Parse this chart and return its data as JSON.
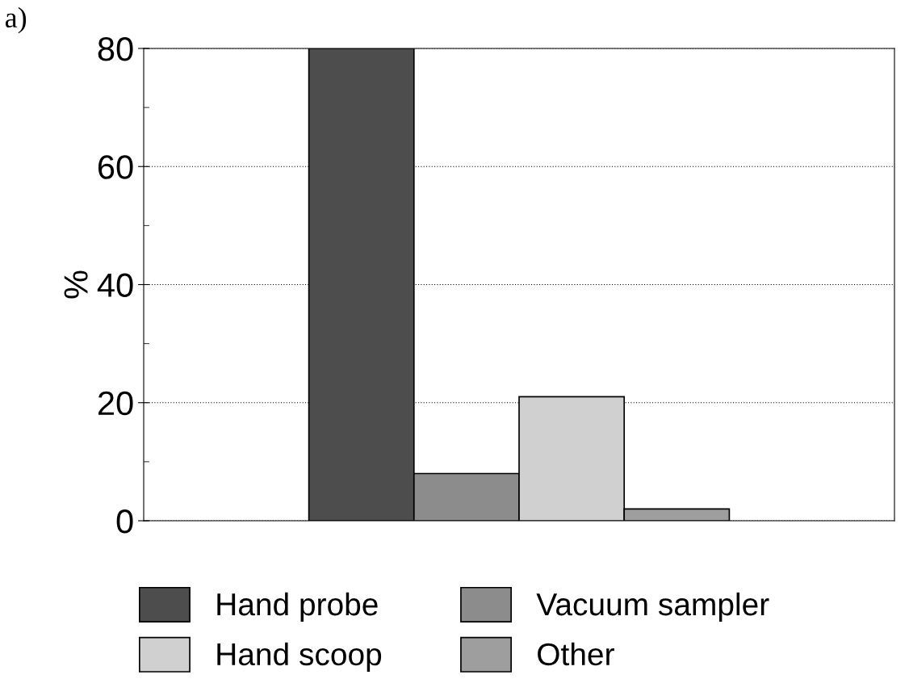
{
  "chart_data": {
    "type": "bar",
    "ylabel": "%",
    "annotations": [
      "a)"
    ],
    "categories": [
      null
    ],
    "series": [
      {
        "name": "Hand probe",
        "color": "#4d4d4d",
        "values": [
          80
        ]
      },
      {
        "name": "Vacuum sampler",
        "color": "#8c8c8c",
        "values": [
          8
        ]
      },
      {
        "name": "Hand scoop",
        "color": "#d0d0d0",
        "values": [
          21
        ]
      },
      {
        "name": "Other",
        "color": "#9e9e9e",
        "values": [
          2
        ]
      }
    ],
    "ylim": [
      0,
      80
    ],
    "yticks": [
      0,
      20,
      40,
      60,
      80
    ],
    "grid": "y",
    "legend": "bottom"
  }
}
